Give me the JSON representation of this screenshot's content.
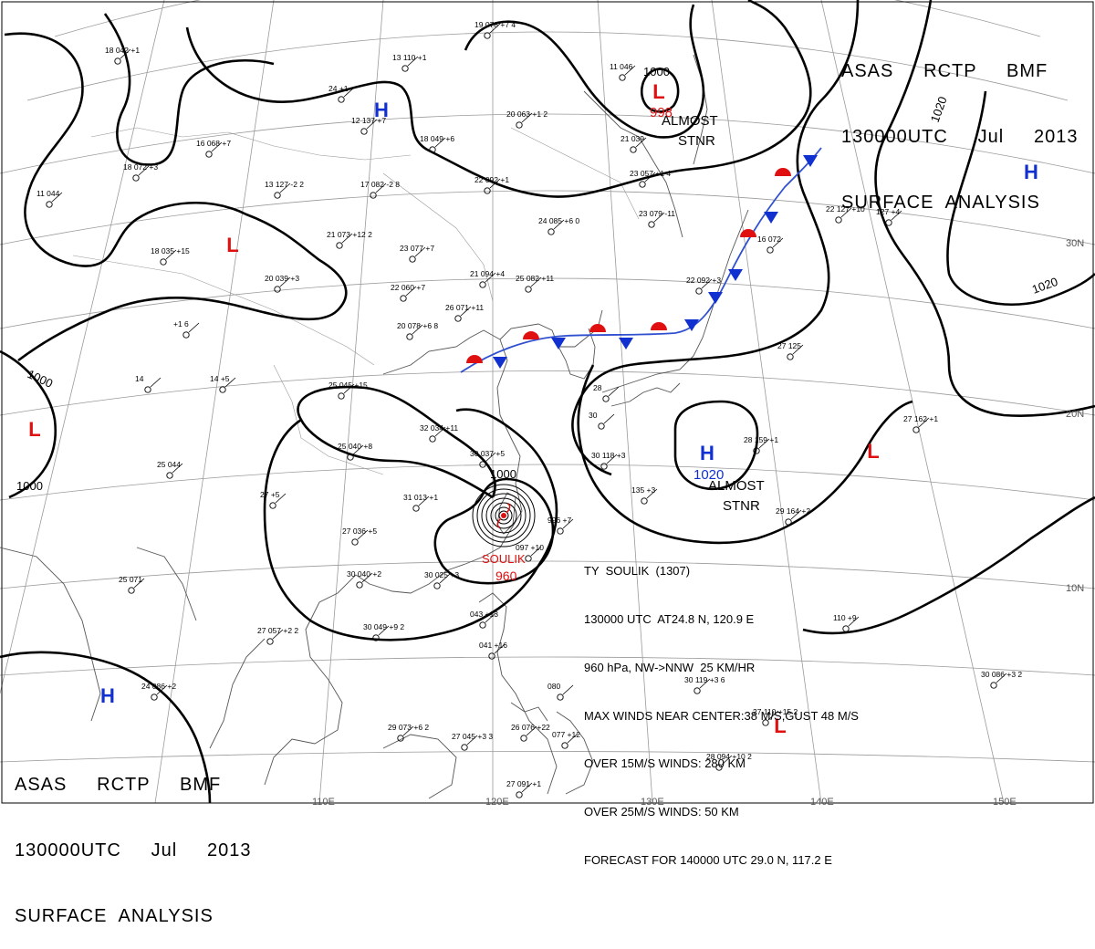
{
  "header": {
    "line1": "ASAS     RCTP     BMF",
    "line2": "130000UTC     Jul     2013",
    "line3": "SURFACE  ANALYSIS"
  },
  "typhoon_info": {
    "line1": "TY  SOULIK  (1307)",
    "line2": "130000 UTC  AT24.8 N, 120.9 E",
    "line3": "960 hPa, NW->NNW  25 KM/HR",
    "line4": "MAX WINDS NEAR CENTER:38 M/S,GUST 48 M/S",
    "line5": "OVER 15M/S WINDS: 280 KM",
    "line6": "OVER 25M/S WINDS: 50 KM",
    "line7": "FORECAST FOR 140000 UTC 29.0 N, 117.2 E"
  },
  "pressure_centers": [
    {
      "type": "H",
      "color": "#1030d0"
    },
    {
      "type": "H",
      "color": "#1030d0"
    },
    {
      "type": "H",
      "color": "#1030d0"
    },
    {
      "type": "H",
      "color": "#1030d0"
    },
    {
      "type": "L",
      "color": "#e01010"
    },
    {
      "type": "L",
      "color": "#e01010"
    },
    {
      "type": "L",
      "color": "#e01010"
    },
    {
      "type": "L",
      "color": "#e01010"
    },
    {
      "type": "L",
      "color": "#e01010"
    }
  ],
  "center_values": {
    "low_north": "998",
    "high_east": "1020",
    "typhoon_name": "SOULIK",
    "typhoon_pressure": "960"
  },
  "notes": {
    "almost_stnr": "ALMOST\nSTNR"
  },
  "isobar_labels": [
    "1000",
    "1000",
    "1000",
    "1000",
    "1020",
    "1020"
  ],
  "longitude_labels": [
    "110E",
    "120E",
    "130E",
    "140E",
    "150E"
  ],
  "latitude_labels": [
    "30N",
    "20N",
    "10N"
  ],
  "stations": [
    "19 078 +7 4",
    "18 042 +1",
    "13 110 +1",
    "24 +1",
    "12 137 +7",
    "18 049 +6",
    "20 063 +1 2",
    "11 046",
    "21 039",
    "23 057 +1 4",
    "16 068 +7",
    "18 072 +3",
    "11 044",
    "13 127 -2 2",
    "17 082 -2 8",
    "22 092 +1",
    "24 085 +6 0",
    "23 079 -11",
    "22 127 +10",
    "127 +4",
    "16 072",
    "21 073 +12 2",
    "23 077 +7",
    "18 035 +15",
    "20 039 +3",
    "21 094 +4",
    "25 082 +11",
    "22 060 +7",
    "26 071 +11",
    "20 078 +6 8",
    "22 092 +3",
    "+1 6",
    "27 125",
    "14 +5",
    "14",
    "25 045 +15",
    "28",
    "30",
    "32 034 +11",
    "25 040 +8",
    "30 037 +5",
    "30 118 +3",
    "28 159 +1",
    "27 162 +1",
    "31 013 +1",
    "27 +5",
    "27 036 +5",
    "30 040 +2",
    "30 025 +3",
    "996 +7",
    "097 +10",
    "135 +3",
    "29 164 +2",
    "25 044",
    "25 071",
    "27 057 +2 2",
    "30 049 +9 2",
    "043 +13",
    "041 +16",
    "080",
    "30 119 +3 6",
    "30 086 +3 2",
    "110 +9",
    "24 086 +2",
    "29 073 +6 2",
    "27 045 +3 3",
    "26 076 +22",
    "077 +12",
    "27 091 +1",
    "27 110 +15 2",
    "28 094 +10 2"
  ]
}
